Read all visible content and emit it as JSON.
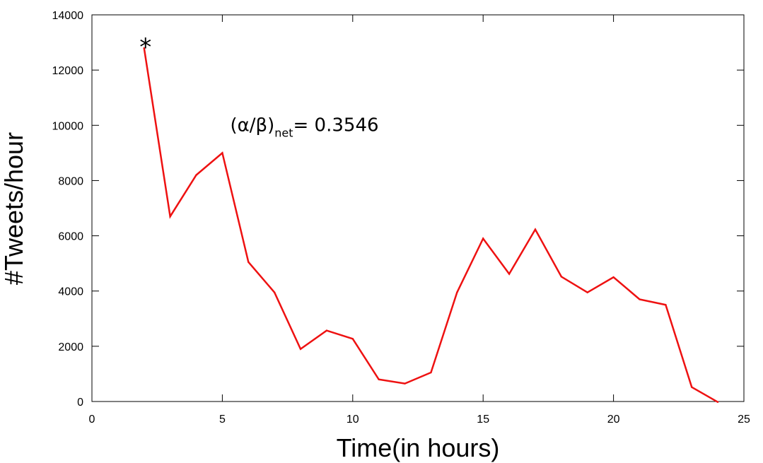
{
  "chart_data": {
    "type": "line",
    "xlabel": "Time(in hours)",
    "ylabel": "#Tweets/hour",
    "xlim": [
      0,
      25
    ],
    "ylim": [
      0,
      14000
    ],
    "x_ticks": [
      0,
      5,
      10,
      15,
      20,
      25
    ],
    "y_ticks": [
      0,
      2000,
      4000,
      6000,
      8000,
      10000,
      12000,
      14000
    ],
    "grid": false,
    "legend": "none",
    "series": [
      {
        "color": "#ee1111",
        "x": [
          2,
          3,
          4,
          5,
          6,
          7,
          8,
          9,
          10,
          11,
          12,
          13,
          14,
          15,
          16,
          17,
          18,
          19,
          20,
          21,
          22,
          23,
          24
        ],
        "y": [
          12800,
          6700,
          8200,
          9000,
          5050,
          3950,
          1900,
          2570,
          2270,
          800,
          650,
          1050,
          3950,
          5900,
          4620,
          6230,
          4520,
          3950,
          4500,
          3700,
          3500,
          520,
          -20
        ]
      }
    ],
    "annotations": [
      {
        "text_main": "(α/β)",
        "text_sub": "net",
        "text_tail": "= 0.3546",
        "x": 5.3,
        "y": 10000
      },
      {
        "text": "*",
        "x": 2,
        "y": 12800
      }
    ]
  }
}
